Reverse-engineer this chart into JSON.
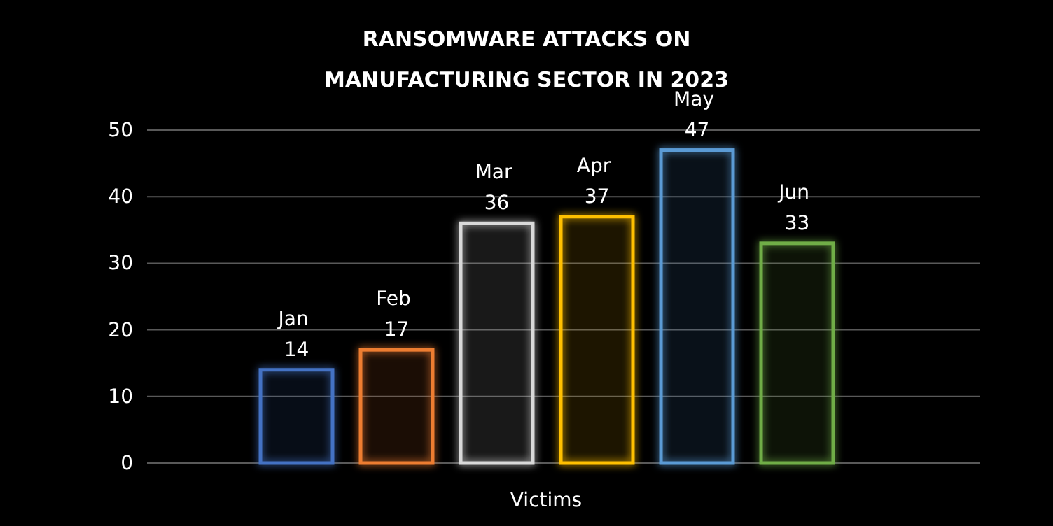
{
  "chart_data": {
    "type": "bar",
    "title": "RANSOMWARE ATTACKS ON MANUFACTURING SECTOR IN 2023",
    "xlabel": "Victims",
    "categories": [
      null,
      null,
      null,
      null,
      null,
      null
    ],
    "values": [
      14,
      17,
      36,
      37,
      47,
      33
    ],
    "value_labels": [
      "Jan 14",
      "Feb 17",
      "Mar 36",
      "Apr 37",
      "May 47",
      "Jun 33"
    ],
    "colors": [
      "#4472c4",
      "#ed7d31",
      "#d9d9d9",
      "#ffc000",
      "#5b9bd5",
      "#70ad47"
    ],
    "ylim": [
      0,
      50
    ],
    "yticks": [
      0,
      10,
      20,
      30,
      40,
      50
    ],
    "grid": "y"
  }
}
